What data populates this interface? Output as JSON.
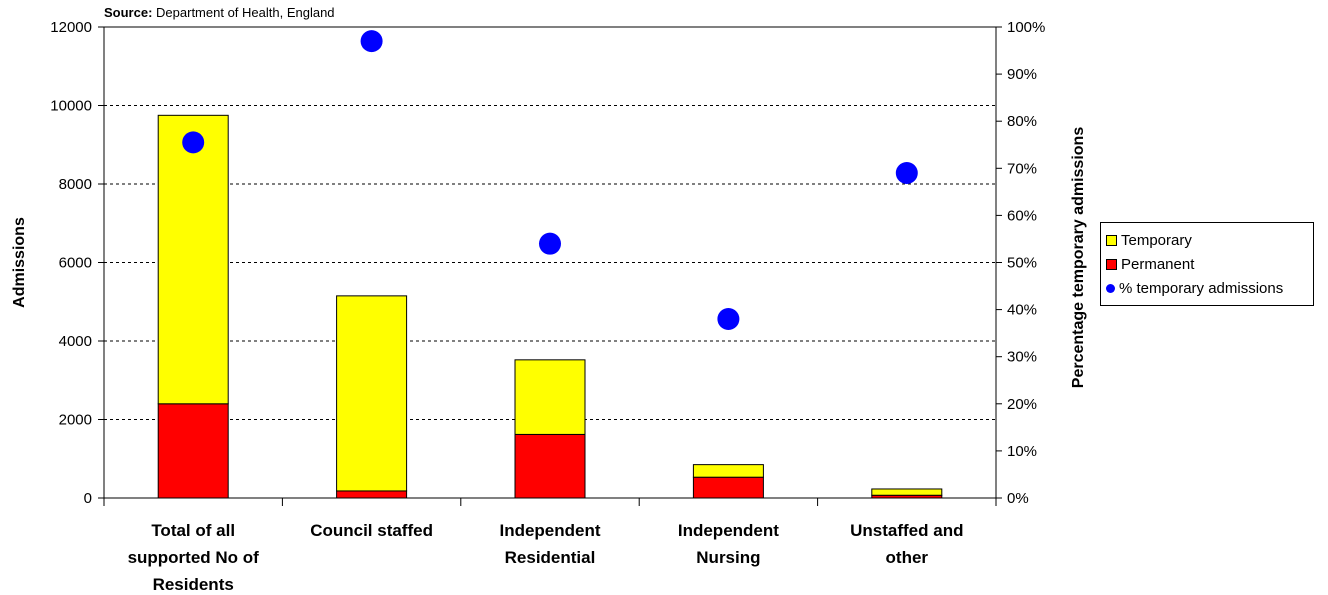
{
  "source": {
    "label": "Source:",
    "text": "Department of Health, England"
  },
  "legend": {
    "temporary": "Temporary",
    "permanent": "Permanent",
    "pct": "% temporary admissions"
  },
  "colors": {
    "temporary": "#ffff00",
    "permanent": "#ff0000",
    "pct": "#0000ff",
    "grid": "#000000"
  },
  "chart_data": {
    "type": "bar",
    "stacked": true,
    "categories": [
      [
        "Total of all",
        "supported No of",
        "Residents"
      ],
      [
        "Council staffed"
      ],
      [
        "Independent",
        "Residential"
      ],
      [
        "Independent",
        "Nursing"
      ],
      [
        "Unstaffed and",
        "other"
      ]
    ],
    "series": [
      {
        "name": "Permanent",
        "values": [
          2400,
          180,
          1620,
          530,
          70
        ]
      },
      {
        "name": "Temporary",
        "values": [
          7350,
          4970,
          1900,
          320,
          160
        ]
      },
      {
        "name": "% temporary admissions",
        "axis": "right",
        "kind": "scatter",
        "values": [
          0.755,
          0.97,
          0.54,
          0.38,
          0.69
        ]
      }
    ],
    "ylabel": "Admissions",
    "ylabel_right": "Percentage temporary admissions",
    "ylim": [
      0,
      12000
    ],
    "yticks": [
      0,
      2000,
      4000,
      6000,
      8000,
      10000,
      12000
    ],
    "ylim_right": [
      0,
      1
    ],
    "yticks_right": [
      "0%",
      "10%",
      "20%",
      "30%",
      "40%",
      "50%",
      "60%",
      "70%",
      "80%",
      "90%",
      "100%"
    ],
    "grid": "dashed horizontal",
    "legend_position": "right"
  }
}
